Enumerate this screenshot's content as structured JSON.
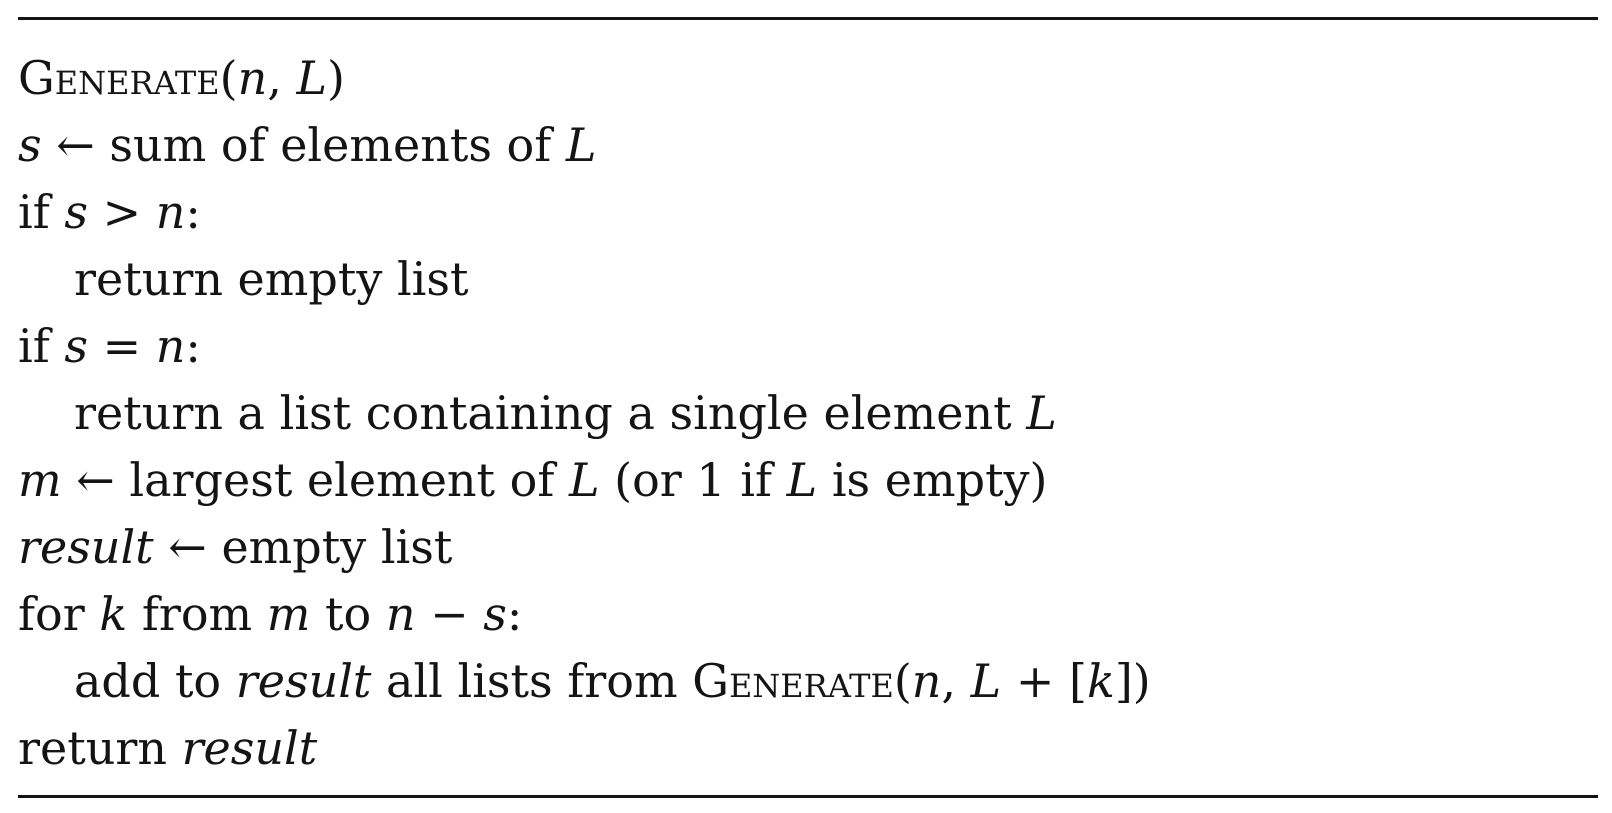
{
  "algorithm": {
    "lines": [
      {
        "segments": [
          "Generate",
          "(",
          "n",
          ", ",
          "L",
          ")"
        ]
      },
      {
        "segments": [
          "s",
          " ← sum of elements of ",
          "L"
        ]
      },
      {
        "segments": [
          "if ",
          "s",
          " > ",
          "n",
          ":"
        ]
      },
      {
        "segments": [
          "return empty list"
        ]
      },
      {
        "segments": [
          "if ",
          "s",
          " = ",
          "n",
          ":"
        ]
      },
      {
        "segments": [
          "return a list containing a single element ",
          "L"
        ]
      },
      {
        "segments": [
          "m",
          " ← largest element of ",
          "L",
          " (or 1 if ",
          "L",
          " is empty)"
        ]
      },
      {
        "segments": [
          "result",
          " ← empty list"
        ]
      },
      {
        "segments": [
          "for ",
          "k",
          " from ",
          "m",
          " to ",
          "n",
          " − ",
          "s",
          ":"
        ]
      },
      {
        "segments": [
          "add to ",
          "result",
          " all lists from ",
          "Generate",
          "(",
          "n",
          ", ",
          "L",
          " + [",
          "k",
          "])"
        ]
      },
      {
        "segments": [
          "return ",
          "result"
        ]
      }
    ]
  }
}
